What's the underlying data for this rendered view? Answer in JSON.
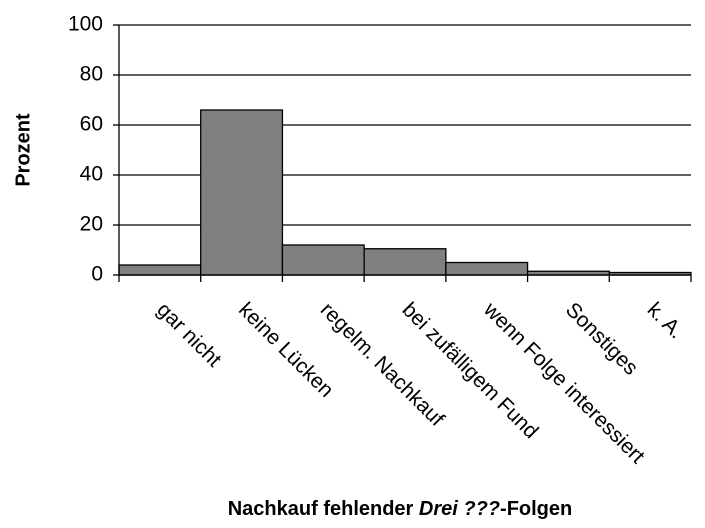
{
  "chart_data": {
    "type": "bar",
    "ylabel": "Prozent",
    "xlabel": [
      {
        "text": "Nachkauf fehlender "
      },
      {
        "text": "Drei ???",
        "italic": true
      },
      {
        "text": "-Folgen"
      }
    ],
    "categories": [
      "gar nicht",
      "keine Lücken",
      "regelm. Nachkauf",
      "bei zufälligem Fund",
      "wenn Folge interessiert",
      "Sonstiges",
      "k. A."
    ],
    "values": [
      4,
      66,
      12,
      10.5,
      5,
      1.5,
      1
    ],
    "color": "#808080",
    "ylim": [
      0,
      100
    ],
    "yticks": [
      0,
      20,
      40,
      60,
      80,
      100
    ],
    "grid": true
  }
}
